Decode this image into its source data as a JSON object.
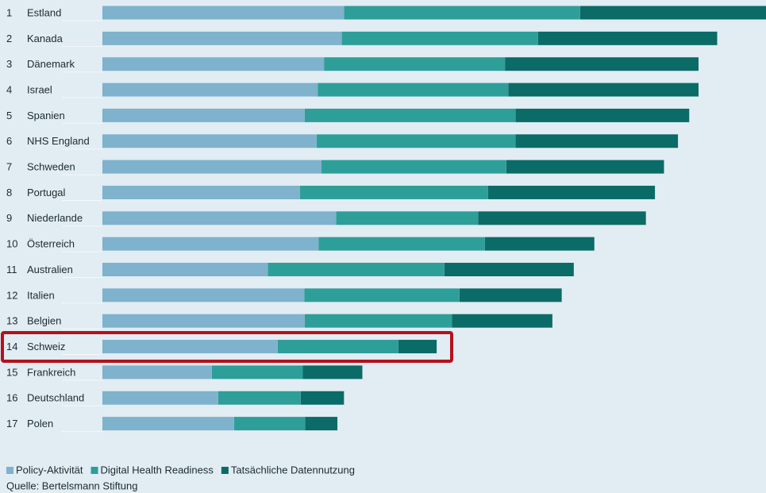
{
  "chart_data": {
    "type": "stacked-bar-horizontal",
    "ranks": [
      1,
      2,
      3,
      4,
      5,
      6,
      7,
      8,
      9,
      10,
      11,
      12,
      13,
      14,
      15,
      16,
      17
    ],
    "categories": [
      "Estland",
      "Kanada",
      "Dänemark",
      "Israel",
      "Spanien",
      "NHS England",
      "Schweden",
      "Portugal",
      "Niederlande",
      "Österreich",
      "Australien",
      "Italien",
      "Belgien",
      "Schweiz",
      "Frankreich",
      "Deutschland",
      "Polen"
    ],
    "xlim": [
      0,
      242
    ],
    "series": [
      {
        "name": "Policy-Aktivität",
        "color": "#7fb2cc",
        "values": [
          88.1,
          87.3,
          80.8,
          78.5,
          73.8,
          78.1,
          79.9,
          72.0,
          85.2,
          78.8,
          60.3,
          73.6,
          73.8,
          63.9,
          39.9,
          42.2,
          48.0
        ],
        "value_labels": [
          "88,1",
          "87,3",
          "80,8",
          "78,5",
          "73,8",
          "78,1",
          "79,9",
          "72,0",
          "85,2",
          "78,8",
          "60,3",
          "73,6",
          "73,8",
          "63,9",
          "39,9",
          "42,2",
          "48,0"
        ]
      },
      {
        "name": "Digital Health Readiness",
        "color": "#2e9e99",
        "values": [
          86.1,
          71.6,
          66.0,
          69.5,
          76.9,
          72.5,
          67.4,
          68.6,
          51.8,
          60.7,
          64.4,
          56.6,
          53.7,
          44.0,
          33.2,
          30.1,
          25.9
        ],
        "value_labels": [
          "86,1",
          "71,6",
          "66,0",
          "69,5",
          "76,9",
          "72,5",
          "67,4",
          "68,6",
          "51,8",
          "60,7",
          "64,4",
          "56,6",
          "53,7",
          "44,0",
          "33,2",
          "30,1",
          "25,9"
        ]
      },
      {
        "name": "Tatsächliche Datennutzung",
        "color": "#0b6b66",
        "values": [
          71.7,
          65.3,
          70.6,
          69.4,
          63.3,
          59.3,
          57.5,
          60.9,
          61.2,
          39.9,
          47.2,
          37.3,
          36.6,
          14.0,
          21.7,
          15.8,
          11.8
        ],
        "value_labels": [
          "71,7",
          "65,3",
          "70,6",
          "69,4",
          "63,3",
          "59,3",
          "57,5",
          "60,9",
          "61,2",
          "39,9",
          "47,2",
          "37,3",
          "36,6",
          "14,0",
          "21,7",
          "15,8",
          "11,8"
        ]
      }
    ],
    "source": "Quelle: Bertelsmann Stiftung"
  }
}
